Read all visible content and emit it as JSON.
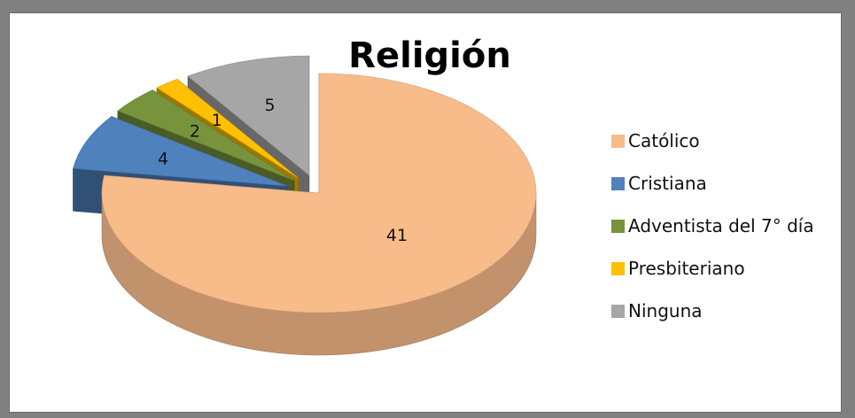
{
  "chart_data": {
    "type": "pie",
    "title": "Religión",
    "categories": [
      "Católico",
      "Cristiana",
      "Adventista del 7° día",
      "Presbiteriano",
      "Ninguna"
    ],
    "values": [
      41,
      4,
      2,
      1,
      5
    ],
    "colors": [
      "#f8bb8a",
      "#4f81bd",
      "#77933c",
      "#ffc000",
      "#a6a6a6"
    ],
    "legend_position": "right",
    "style": "3d-exploded"
  }
}
